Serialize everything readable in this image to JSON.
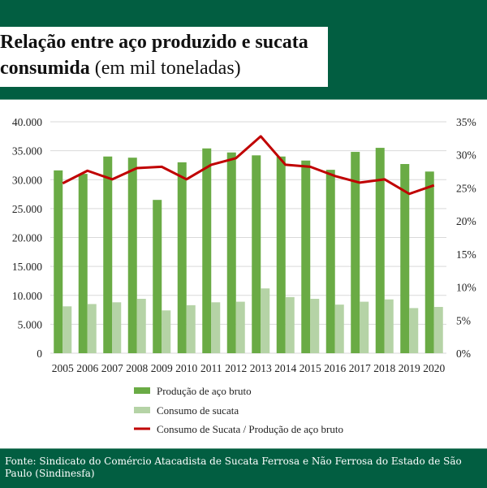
{
  "header": {
    "title_bold_line1": "Relação entre aço produzido e sucata",
    "title_bold_line2": "consumida",
    "title_light": "(em mil toneladas)"
  },
  "footer": {
    "source": "Fonte: Sindicato do Comércio Atacadista de Sucata Ferrosa e Não Ferrosa do Estado de São Paulo (Sindinesfa)"
  },
  "colors": {
    "brand": "#025e41",
    "production": "#6aab45",
    "scrap": "#b5d3a6",
    "ratio": "#c00000"
  },
  "chart_data": {
    "type": "bar",
    "title": "Relação entre aço produzido e sucata consumida (em mil toneladas)",
    "categories": [
      "2005",
      "2006",
      "2007",
      "2008",
      "2009",
      "2010",
      "2011",
      "2012",
      "2013",
      "2014",
      "2015",
      "2016",
      "2017",
      "2018",
      "2019",
      "2020"
    ],
    "series": [
      {
        "name": "Produção de aço bruto",
        "type": "bar",
        "axis": "left",
        "values": [
          31600,
          31000,
          34000,
          33800,
          26500,
          33000,
          35400,
          34700,
          34200,
          34000,
          33300,
          31700,
          34800,
          35500,
          32700,
          31400
        ]
      },
      {
        "name": "Consumo de sucata",
        "type": "bar",
        "axis": "left",
        "values": [
          8100,
          8500,
          8800,
          9400,
          7400,
          8300,
          8800,
          8900,
          11200,
          9700,
          9400,
          8400,
          8900,
          9300,
          7800,
          8000
        ]
      },
      {
        "name": "Consumo de Sucata / Produção de aço bruto",
        "type": "line",
        "axis": "right",
        "values": [
          25.7,
          27.6,
          26.3,
          28.0,
          28.2,
          26.3,
          28.5,
          29.5,
          32.8,
          28.5,
          28.2,
          26.8,
          25.8,
          26.3,
          24.1,
          25.4
        ]
      }
    ],
    "ylim": [
      0,
      40000
    ],
    "y2lim": [
      0,
      35
    ],
    "yticks": [
      "0",
      "5.000",
      "10.000",
      "15.000",
      "20.000",
      "25.000",
      "30.000",
      "35.000",
      "40.000"
    ],
    "y2ticks": [
      "0%",
      "5%",
      "10%",
      "15%",
      "20%",
      "25%",
      "30%",
      "35%"
    ],
    "grid": true,
    "legend_placement": "bottom"
  }
}
